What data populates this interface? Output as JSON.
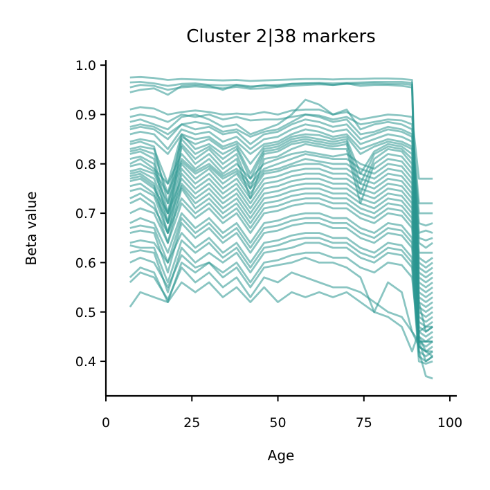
{
  "chart_data": {
    "type": "line",
    "title": "Cluster 2|38 markers",
    "xlabel": "Age",
    "ylabel": "Beta value",
    "xlim": [
      0,
      102
    ],
    "ylim": [
      0.33,
      1.01
    ],
    "xticks": [
      0,
      25,
      50,
      75,
      100
    ],
    "xtick_labels": [
      "0",
      "25",
      "50",
      "75",
      "100"
    ],
    "yticks": [
      0.4,
      0.5,
      0.6,
      0.7,
      0.8,
      0.9,
      1.0
    ],
    "ytick_labels": [
      "0.4",
      "0.5",
      "0.6",
      "0.7",
      "0.8",
      "0.9",
      "1.0"
    ],
    "grid": false,
    "line_color": "#2a9690",
    "line_alpha": 0.55,
    "x": [
      7,
      10,
      14,
      18,
      22,
      26,
      30,
      34,
      38,
      42,
      46,
      50,
      54,
      58,
      62,
      66,
      70,
      74,
      78,
      82,
      86,
      89,
      91,
      93,
      95
    ],
    "series": [
      {
        "values": [
          0.975,
          0.976,
          0.974,
          0.97,
          0.972,
          0.971,
          0.97,
          0.969,
          0.97,
          0.968,
          0.969,
          0.97,
          0.971,
          0.972,
          0.972,
          0.971,
          0.972,
          0.972,
          0.973,
          0.973,
          0.972,
          0.97,
          0.52,
          0.46,
          0.47
        ]
      },
      {
        "values": [
          0.965,
          0.966,
          0.963,
          0.958,
          0.962,
          0.963,
          0.96,
          0.959,
          0.96,
          0.957,
          0.958,
          0.96,
          0.962,
          0.963,
          0.964,
          0.963,
          0.964,
          0.965,
          0.966,
          0.966,
          0.966,
          0.964,
          0.42,
          0.37,
          0.365
        ]
      },
      {
        "values": [
          0.955,
          0.96,
          0.958,
          0.95,
          0.955,
          0.957,
          0.955,
          0.953,
          0.956,
          0.952,
          0.953,
          0.956,
          0.958,
          0.96,
          0.961,
          0.96,
          0.962,
          0.962,
          0.963,
          0.962,
          0.962,
          0.96,
          0.44,
          0.4,
          0.41
        ]
      },
      {
        "values": [
          0.945,
          0.95,
          0.953,
          0.94,
          0.958,
          0.96,
          0.958,
          0.95,
          0.96,
          0.955,
          0.96,
          0.957,
          0.962,
          0.963,
          0.963,
          0.96,
          0.963,
          0.958,
          0.96,
          0.96,
          0.958,
          0.955,
          0.45,
          0.42,
          0.41
        ]
      },
      {
        "values": [
          0.91,
          0.915,
          0.912,
          0.9,
          0.905,
          0.908,
          0.905,
          0.9,
          0.902,
          0.9,
          0.905,
          0.9,
          0.908,
          0.91,
          0.91,
          0.9,
          0.905,
          0.89,
          0.895,
          0.9,
          0.898,
          0.895,
          0.77,
          0.77,
          0.77
        ]
      },
      {
        "values": [
          0.895,
          0.9,
          0.895,
          0.885,
          0.9,
          0.895,
          0.9,
          0.89,
          0.895,
          0.888,
          0.89,
          0.89,
          0.895,
          0.9,
          0.898,
          0.89,
          0.895,
          0.88,
          0.885,
          0.89,
          0.888,
          0.88,
          0.72,
          0.72,
          0.72
        ]
      },
      {
        "values": [
          0.885,
          0.89,
          0.88,
          0.87,
          0.895,
          0.9,
          0.89,
          0.875,
          0.88,
          0.86,
          0.87,
          0.88,
          0.9,
          0.93,
          0.92,
          0.9,
          0.91,
          0.87,
          0.88,
          0.885,
          0.88,
          0.87,
          0.7,
          0.7,
          0.7
        ]
      },
      {
        "values": [
          0.875,
          0.88,
          0.875,
          0.86,
          0.88,
          0.885,
          0.88,
          0.865,
          0.87,
          0.855,
          0.865,
          0.87,
          0.885,
          0.9,
          0.895,
          0.885,
          0.89,
          0.86,
          0.865,
          0.875,
          0.87,
          0.86,
          0.68,
          0.675,
          0.68
        ]
      },
      {
        "values": [
          0.87,
          0.875,
          0.87,
          0.85,
          0.88,
          0.87,
          0.875,
          0.86,
          0.865,
          0.84,
          0.86,
          0.865,
          0.88,
          0.89,
          0.885,
          0.875,
          0.88,
          0.85,
          0.86,
          0.87,
          0.865,
          0.855,
          0.66,
          0.665,
          0.66
        ]
      },
      {
        "values": [
          0.86,
          0.865,
          0.86,
          0.83,
          0.87,
          0.86,
          0.865,
          0.845,
          0.855,
          0.83,
          0.85,
          0.855,
          0.87,
          0.88,
          0.875,
          0.865,
          0.87,
          0.84,
          0.85,
          0.86,
          0.855,
          0.845,
          0.65,
          0.645,
          0.65
        ]
      },
      {
        "values": [
          0.845,
          0.85,
          0.845,
          0.82,
          0.86,
          0.85,
          0.855,
          0.835,
          0.845,
          0.82,
          0.84,
          0.845,
          0.86,
          0.87,
          0.865,
          0.855,
          0.86,
          0.83,
          0.84,
          0.85,
          0.845,
          0.835,
          0.64,
          0.63,
          0.64
        ]
      },
      {
        "values": [
          0.84,
          0.845,
          0.835,
          0.72,
          0.855,
          0.84,
          0.85,
          0.83,
          0.84,
          0.8,
          0.835,
          0.84,
          0.855,
          0.86,
          0.858,
          0.85,
          0.855,
          0.82,
          0.835,
          0.845,
          0.84,
          0.83,
          0.62,
          0.62,
          0.62
        ]
      },
      {
        "values": [
          0.83,
          0.835,
          0.83,
          0.76,
          0.86,
          0.83,
          0.84,
          0.82,
          0.835,
          0.78,
          0.83,
          0.835,
          0.85,
          0.855,
          0.85,
          0.845,
          0.85,
          0.78,
          0.825,
          0.84,
          0.835,
          0.82,
          0.61,
          0.6,
          0.61
        ]
      },
      {
        "values": [
          0.825,
          0.83,
          0.82,
          0.74,
          0.85,
          0.82,
          0.835,
          0.81,
          0.83,
          0.77,
          0.825,
          0.83,
          0.845,
          0.85,
          0.845,
          0.84,
          0.845,
          0.76,
          0.82,
          0.835,
          0.83,
          0.81,
          0.6,
          0.59,
          0.6
        ]
      },
      {
        "values": [
          0.82,
          0.825,
          0.81,
          0.7,
          0.84,
          0.81,
          0.83,
          0.8,
          0.82,
          0.75,
          0.82,
          0.825,
          0.84,
          0.845,
          0.84,
          0.835,
          0.84,
          0.74,
          0.81,
          0.83,
          0.825,
          0.8,
          0.59,
          0.58,
          0.59
        ]
      },
      {
        "values": [
          0.81,
          0.815,
          0.8,
          0.68,
          0.835,
          0.8,
          0.82,
          0.79,
          0.81,
          0.73,
          0.81,
          0.815,
          0.83,
          0.84,
          0.835,
          0.83,
          0.83,
          0.72,
          0.8,
          0.82,
          0.815,
          0.79,
          0.58,
          0.57,
          0.58
        ]
      },
      {
        "values": [
          0.8,
          0.81,
          0.79,
          0.76,
          0.82,
          0.79,
          0.81,
          0.78,
          0.8,
          0.77,
          0.8,
          0.81,
          0.82,
          0.825,
          0.82,
          0.815,
          0.82,
          0.8,
          0.79,
          0.81,
          0.805,
          0.78,
          0.57,
          0.56,
          0.57
        ]
      },
      {
        "values": [
          0.795,
          0.8,
          0.785,
          0.74,
          0.81,
          0.785,
          0.8,
          0.775,
          0.79,
          0.76,
          0.79,
          0.8,
          0.81,
          0.82,
          0.815,
          0.81,
          0.81,
          0.79,
          0.78,
          0.8,
          0.795,
          0.77,
          0.56,
          0.55,
          0.56
        ]
      },
      {
        "values": [
          0.785,
          0.79,
          0.78,
          0.72,
          0.805,
          0.78,
          0.795,
          0.77,
          0.785,
          0.75,
          0.785,
          0.79,
          0.8,
          0.81,
          0.805,
          0.8,
          0.8,
          0.78,
          0.77,
          0.79,
          0.785,
          0.76,
          0.55,
          0.54,
          0.55
        ]
      },
      {
        "values": [
          0.78,
          0.785,
          0.77,
          0.7,
          0.8,
          0.77,
          0.79,
          0.76,
          0.78,
          0.74,
          0.78,
          0.785,
          0.795,
          0.8,
          0.8,
          0.79,
          0.79,
          0.77,
          0.76,
          0.78,
          0.775,
          0.75,
          0.54,
          0.53,
          0.54
        ]
      },
      {
        "values": [
          0.775,
          0.78,
          0.76,
          0.68,
          0.79,
          0.76,
          0.78,
          0.75,
          0.77,
          0.73,
          0.77,
          0.775,
          0.785,
          0.79,
          0.79,
          0.78,
          0.78,
          0.76,
          0.75,
          0.77,
          0.765,
          0.74,
          0.53,
          0.52,
          0.53
        ]
      },
      {
        "values": [
          0.77,
          0.775,
          0.755,
          0.66,
          0.78,
          0.75,
          0.77,
          0.74,
          0.76,
          0.72,
          0.76,
          0.765,
          0.775,
          0.78,
          0.78,
          0.77,
          0.77,
          0.75,
          0.74,
          0.76,
          0.755,
          0.73,
          0.52,
          0.51,
          0.52
        ]
      },
      {
        "values": [
          0.765,
          0.77,
          0.75,
          0.7,
          0.77,
          0.74,
          0.76,
          0.73,
          0.75,
          0.71,
          0.75,
          0.755,
          0.765,
          0.77,
          0.77,
          0.76,
          0.76,
          0.74,
          0.73,
          0.75,
          0.745,
          0.72,
          0.51,
          0.5,
          0.51
        ]
      },
      {
        "values": [
          0.755,
          0.76,
          0.74,
          0.68,
          0.76,
          0.73,
          0.75,
          0.72,
          0.74,
          0.7,
          0.74,
          0.745,
          0.755,
          0.76,
          0.76,
          0.75,
          0.75,
          0.73,
          0.72,
          0.74,
          0.735,
          0.71,
          0.5,
          0.49,
          0.5
        ]
      },
      {
        "values": [
          0.745,
          0.75,
          0.735,
          0.66,
          0.755,
          0.72,
          0.74,
          0.71,
          0.73,
          0.69,
          0.73,
          0.735,
          0.745,
          0.75,
          0.75,
          0.74,
          0.74,
          0.72,
          0.71,
          0.73,
          0.725,
          0.7,
          0.49,
          0.48,
          0.49
        ]
      },
      {
        "values": [
          0.73,
          0.74,
          0.72,
          0.64,
          0.75,
          0.71,
          0.73,
          0.7,
          0.72,
          0.68,
          0.72,
          0.725,
          0.735,
          0.74,
          0.74,
          0.73,
          0.73,
          0.71,
          0.7,
          0.72,
          0.715,
          0.69,
          0.48,
          0.47,
          0.48
        ]
      },
      {
        "values": [
          0.72,
          0.73,
          0.71,
          0.66,
          0.73,
          0.7,
          0.72,
          0.69,
          0.71,
          0.67,
          0.71,
          0.715,
          0.725,
          0.73,
          0.73,
          0.72,
          0.72,
          0.7,
          0.69,
          0.71,
          0.705,
          0.68,
          0.47,
          0.46,
          0.47
        ]
      },
      {
        "values": [
          0.7,
          0.71,
          0.7,
          0.64,
          0.72,
          0.69,
          0.71,
          0.68,
          0.7,
          0.66,
          0.7,
          0.705,
          0.715,
          0.72,
          0.72,
          0.71,
          0.71,
          0.69,
          0.68,
          0.7,
          0.695,
          0.67,
          0.46,
          0.45,
          0.46
        ]
      },
      {
        "values": [
          0.68,
          0.69,
          0.68,
          0.62,
          0.7,
          0.67,
          0.69,
          0.66,
          0.68,
          0.64,
          0.68,
          0.685,
          0.695,
          0.7,
          0.7,
          0.69,
          0.69,
          0.67,
          0.66,
          0.68,
          0.675,
          0.65,
          0.45,
          0.44,
          0.45
        ]
      },
      {
        "values": [
          0.67,
          0.675,
          0.67,
          0.6,
          0.69,
          0.66,
          0.68,
          0.65,
          0.67,
          0.63,
          0.67,
          0.675,
          0.685,
          0.69,
          0.69,
          0.68,
          0.68,
          0.66,
          0.65,
          0.67,
          0.665,
          0.64,
          0.44,
          0.43,
          0.44
        ]
      },
      {
        "values": [
          0.66,
          0.665,
          0.66,
          0.58,
          0.68,
          0.65,
          0.67,
          0.64,
          0.66,
          0.62,
          0.66,
          0.665,
          0.675,
          0.68,
          0.68,
          0.67,
          0.67,
          0.65,
          0.64,
          0.66,
          0.655,
          0.63,
          0.43,
          0.42,
          0.43
        ]
      },
      {
        "values": [
          0.64,
          0.645,
          0.64,
          0.6,
          0.66,
          0.63,
          0.65,
          0.62,
          0.64,
          0.6,
          0.64,
          0.645,
          0.655,
          0.66,
          0.66,
          0.65,
          0.65,
          0.63,
          0.62,
          0.64,
          0.635,
          0.61,
          0.42,
          0.41,
          0.42
        ]
      },
      {
        "values": [
          0.635,
          0.63,
          0.63,
          0.56,
          0.645,
          0.62,
          0.64,
          0.61,
          0.63,
          0.59,
          0.63,
          0.635,
          0.645,
          0.65,
          0.65,
          0.64,
          0.64,
          0.62,
          0.61,
          0.63,
          0.625,
          0.6,
          0.41,
          0.4,
          0.41
        ]
      },
      {
        "values": [
          0.62,
          0.625,
          0.62,
          0.54,
          0.63,
          0.6,
          0.62,
          0.6,
          0.62,
          0.58,
          0.62,
          0.625,
          0.63,
          0.64,
          0.64,
          0.63,
          0.63,
          0.61,
          0.6,
          0.62,
          0.615,
          0.59,
          0.4,
          0.395,
          0.4
        ]
      },
      {
        "values": [
          0.6,
          0.61,
          0.6,
          0.55,
          0.615,
          0.59,
          0.6,
          0.58,
          0.6,
          0.56,
          0.6,
          0.605,
          0.615,
          0.62,
          0.62,
          0.61,
          0.61,
          0.59,
          0.58,
          0.6,
          0.595,
          0.57,
          0.44,
          0.44,
          0.44
        ]
      },
      {
        "values": [
          0.57,
          0.59,
          0.58,
          0.52,
          0.6,
          0.58,
          0.6,
          0.57,
          0.59,
          0.55,
          0.59,
          0.595,
          0.6,
          0.61,
          0.6,
          0.6,
          0.59,
          0.57,
          0.5,
          0.56,
          0.54,
          0.46,
          0.43,
          0.42,
          0.42
        ]
      },
      {
        "values": [
          0.56,
          0.58,
          0.57,
          0.525,
          0.59,
          0.56,
          0.58,
          0.55,
          0.57,
          0.53,
          0.57,
          0.56,
          0.58,
          0.57,
          0.56,
          0.55,
          0.55,
          0.54,
          0.52,
          0.5,
          0.49,
          0.46,
          0.44,
          0.44,
          0.44
        ]
      },
      {
        "values": [
          0.51,
          0.54,
          0.53,
          0.52,
          0.56,
          0.54,
          0.56,
          0.53,
          0.55,
          0.52,
          0.55,
          0.52,
          0.54,
          0.53,
          0.54,
          0.53,
          0.54,
          0.52,
          0.5,
          0.49,
          0.47,
          0.42,
          0.46,
          0.47,
          0.47
        ]
      }
    ]
  }
}
